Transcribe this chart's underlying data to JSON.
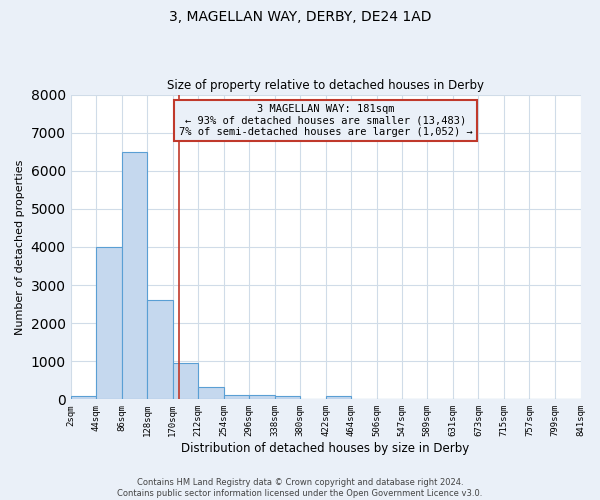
{
  "title": "3, MAGELLAN WAY, DERBY, DE24 1AD",
  "subtitle": "Size of property relative to detached houses in Derby",
  "xlabel": "Distribution of detached houses by size in Derby",
  "ylabel": "Number of detached properties",
  "bin_labels": [
    "2sqm",
    "44sqm",
    "86sqm",
    "128sqm",
    "170sqm",
    "212sqm",
    "254sqm",
    "296sqm",
    "338sqm",
    "380sqm",
    "422sqm",
    "464sqm",
    "506sqm",
    "547sqm",
    "589sqm",
    "631sqm",
    "673sqm",
    "715sqm",
    "757sqm",
    "799sqm",
    "841sqm"
  ],
  "bin_edges": [
    2,
    44,
    86,
    128,
    170,
    212,
    254,
    296,
    338,
    380,
    422,
    464,
    506,
    547,
    589,
    631,
    673,
    715,
    757,
    799,
    841
  ],
  "bar_heights": [
    100,
    4000,
    6500,
    2600,
    950,
    320,
    120,
    110,
    80,
    0,
    100,
    0,
    0,
    0,
    0,
    0,
    0,
    0,
    0,
    0
  ],
  "bar_color": "#c5d8ee",
  "bar_edgecolor": "#5a9fd4",
  "bar_linewidth": 0.8,
  "property_line_x": 181,
  "property_line_color": "#c0392b",
  "annotation_text": "3 MAGELLAN WAY: 181sqm\n← 93% of detached houses are smaller (13,483)\n7% of semi-detached houses are larger (1,052) →",
  "annotation_box_edgecolor": "#c0392b",
  "annotation_box_facecolor": "#eaf0f8",
  "ylim": [
    0,
    8000
  ],
  "plot_background_color": "#ffffff",
  "fig_background_color": "#eaf0f8",
  "grid_color": "#d0dce8",
  "footnote_line1": "Contains HM Land Registry data © Crown copyright and database right 2024.",
  "footnote_line2": "Contains public sector information licensed under the Open Government Licence v3.0."
}
